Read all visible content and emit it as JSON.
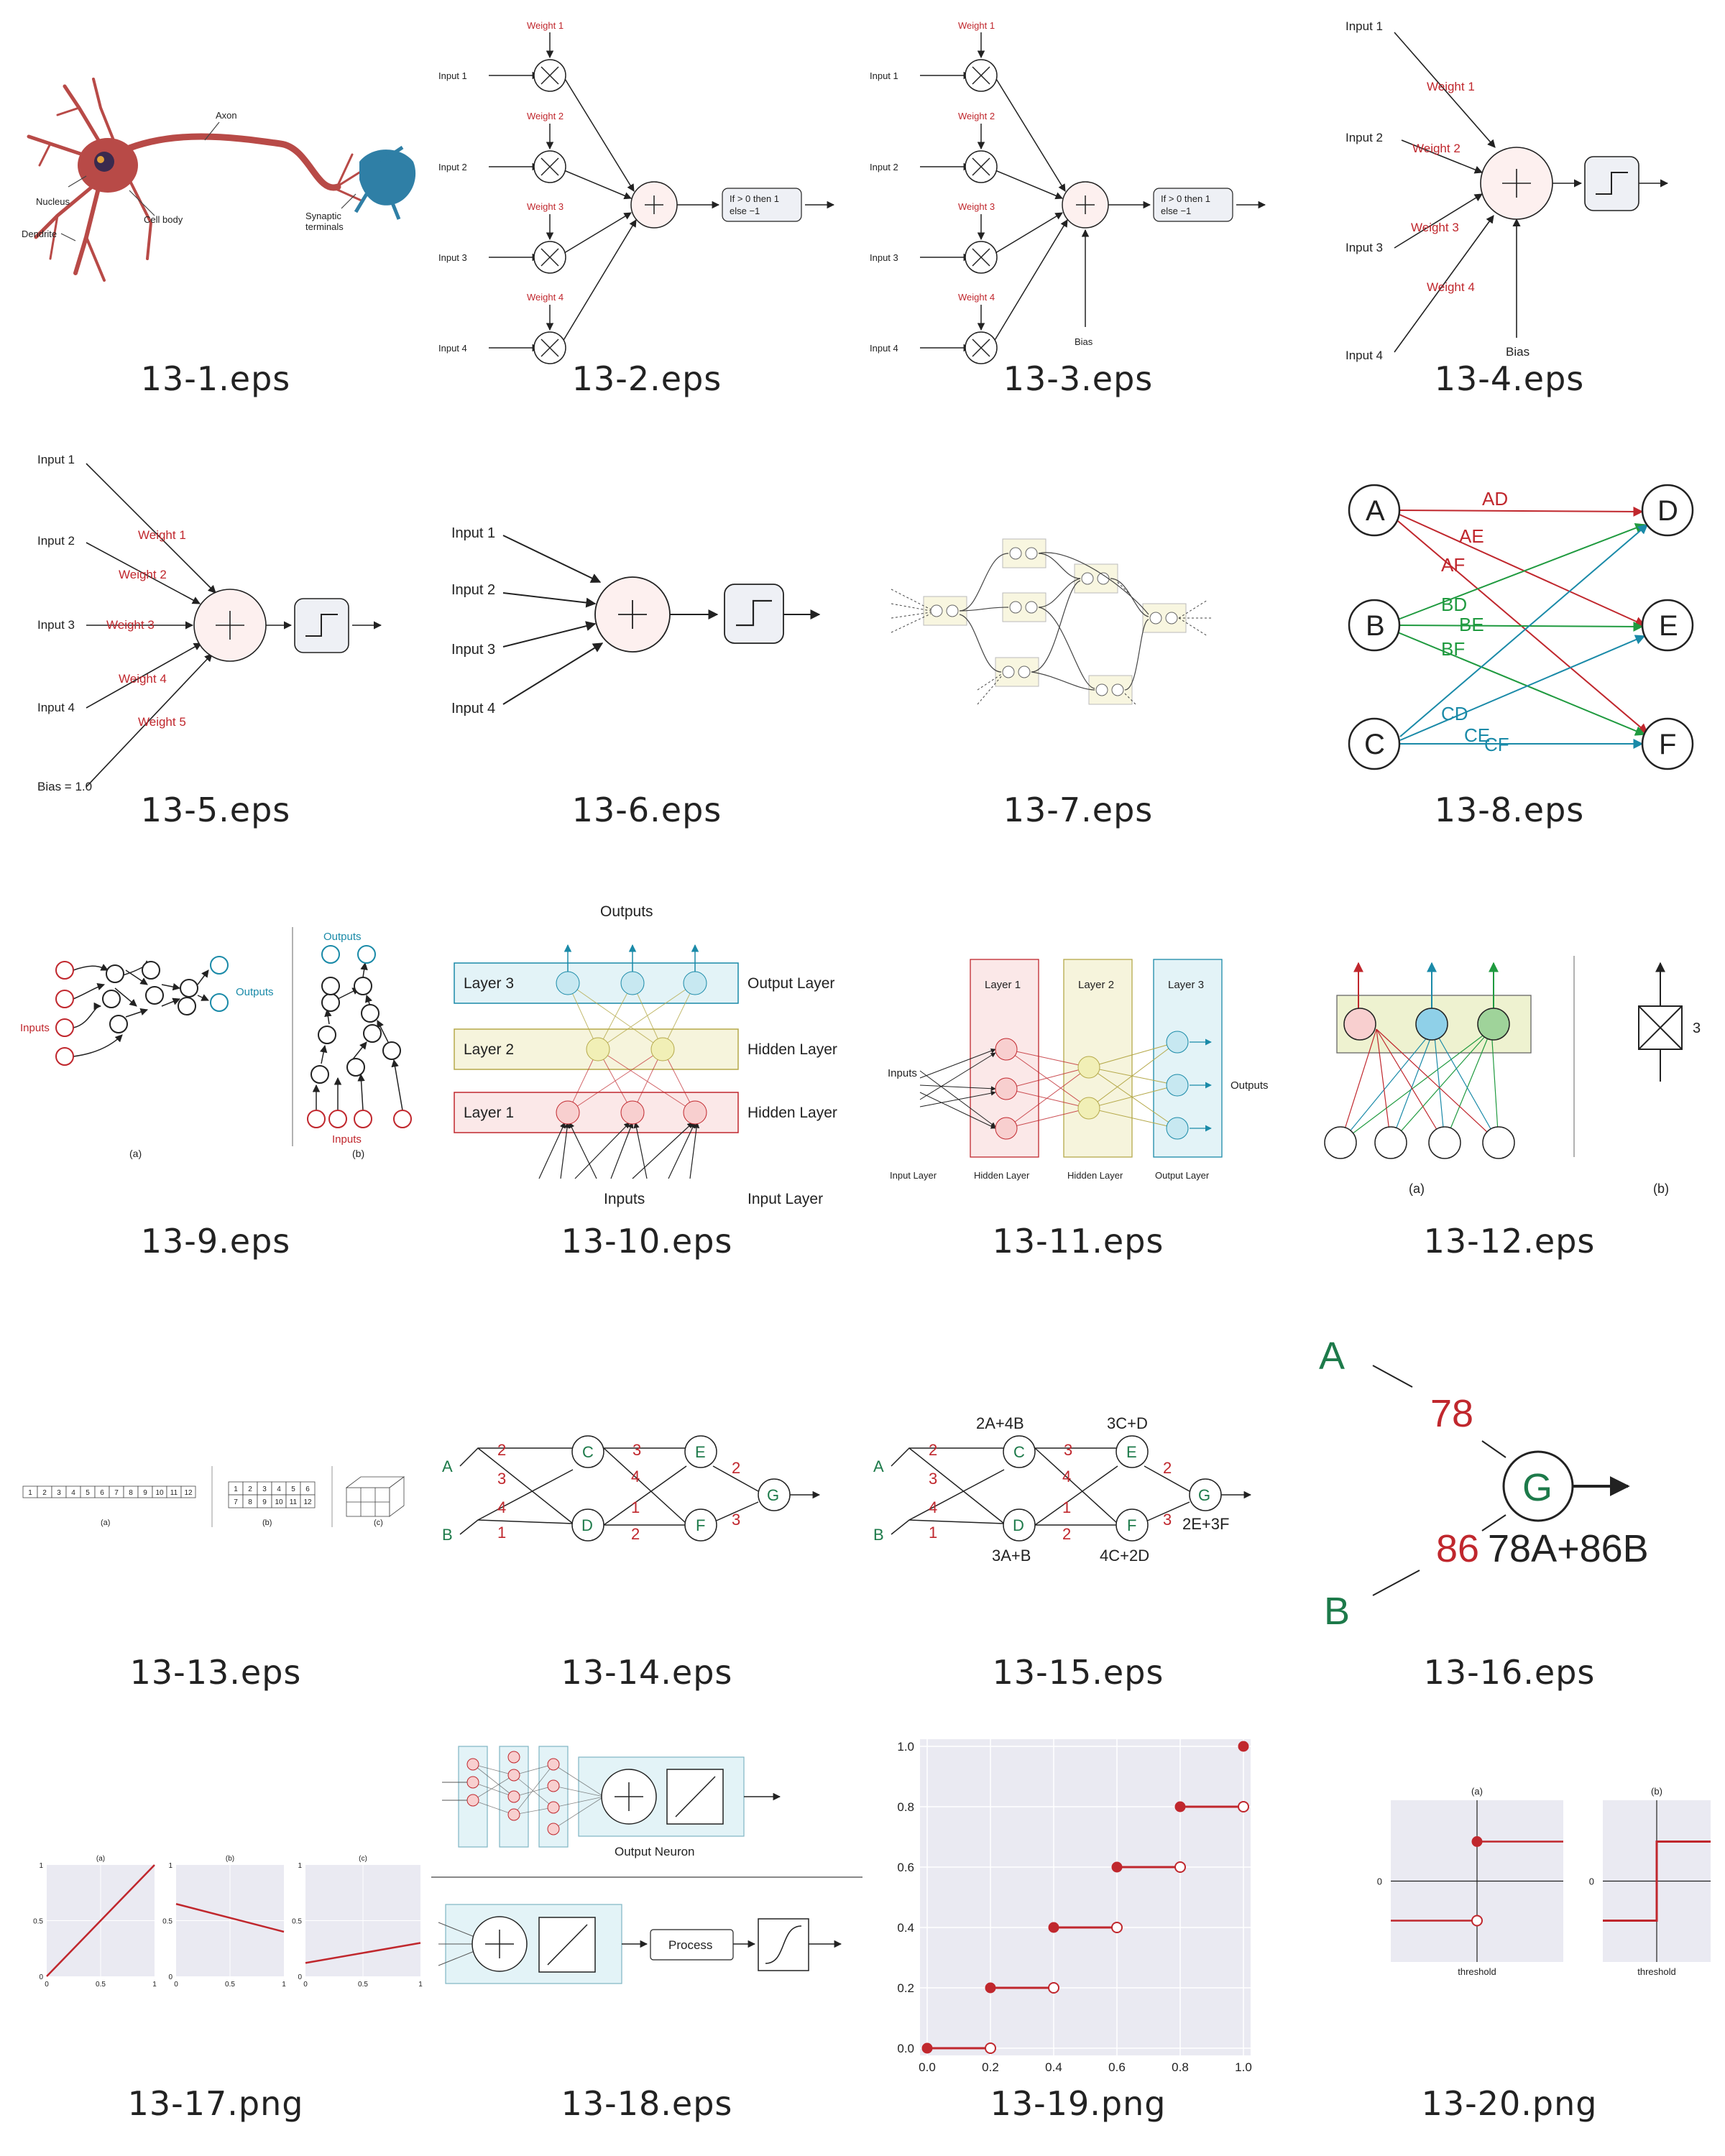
{
  "colors": {
    "red": "#c0272d",
    "green": "#1f9a3f",
    "teal": "#1a8aa8",
    "dkgreen": "#1d7a4a",
    "ink": "#222222"
  },
  "captions": [
    "13-1.eps",
    "13-2.eps",
    "13-3.eps",
    "13-4.eps",
    "13-5.eps",
    "13-6.eps",
    "13-7.eps",
    "13-8.eps",
    "13-9.eps",
    "13-10.eps",
    "13-11.eps",
    "13-12.eps",
    "13-13.eps",
    "13-14.eps",
    "13-15.eps",
    "13-16.eps",
    "13-17.png",
    "13-18.eps",
    "13-19.png",
    "13-20.png"
  ],
  "fig1": {
    "axon": "Axon",
    "nucleus": "Nucleus",
    "cell_body": "Cell body",
    "dendrite": "Dendrite",
    "synaptic": "Synaptic",
    "terminals": "terminals"
  },
  "perceptron": {
    "inputs": [
      "Input 1",
      "Input 2",
      "Input 3",
      "Input 4"
    ],
    "weights": [
      "Weight 1",
      "Weight 2",
      "Weight 3",
      "Weight 4"
    ],
    "rule_line1": "If > 0 then 1",
    "rule_line2": "else −1",
    "bias": "Bias"
  },
  "fig5": {
    "inputs": [
      "Input 1",
      "Input 2",
      "Input 3",
      "Input 4"
    ],
    "weights": [
      "Weight 1",
      "Weight 2",
      "Weight 3",
      "Weight 4",
      "Weight 5"
    ],
    "bias": "Bias = 1.0"
  },
  "fig8": {
    "left": [
      "A",
      "B",
      "C"
    ],
    "right": [
      "D",
      "E",
      "F"
    ],
    "edges": [
      "AD",
      "AE",
      "AF",
      "BD",
      "BE",
      "BF",
      "CD",
      "CE",
      "CF"
    ]
  },
  "fig9": {
    "inputs": "Inputs",
    "outputs": "Outputs",
    "a": "(a)",
    "b": "(b)"
  },
  "fig10": {
    "outputs": "Outputs",
    "inputs": "Inputs",
    "layers": [
      "Layer 3",
      "Layer 2",
      "Layer 1"
    ],
    "roles": [
      "Output Layer",
      "Hidden Layer",
      "Hidden Layer",
      "Input Layer"
    ]
  },
  "fig11": {
    "layers": [
      "Layer 1",
      "Layer 2",
      "Layer 3"
    ],
    "inputs": "Inputs",
    "outputs": "Outputs",
    "roles": [
      "Input Layer",
      "Hidden Layer",
      "Hidden Layer",
      "Output Layer"
    ]
  },
  "fig12": {
    "a": "(a)",
    "b": "(b)",
    "count": "3"
  },
  "fig13": {
    "row": [
      "1",
      "2",
      "3",
      "4",
      "5",
      "6",
      "7",
      "8",
      "9",
      "10",
      "11",
      "12"
    ],
    "a": "(a)",
    "b": "(b)",
    "c": "(c)"
  },
  "fig14": {
    "nodes": [
      "A",
      "B",
      "C",
      "D",
      "E",
      "F",
      "G"
    ],
    "weights": [
      "2",
      "3",
      "4",
      "1",
      "3",
      "4",
      "1",
      "2",
      "2",
      "3"
    ]
  },
  "fig15": {
    "exprs": [
      "2A+4B",
      "3C+D",
      "3A+B",
      "4C+2D",
      "2E+3F"
    ]
  },
  "fig16": {
    "a": "A",
    "b": "B",
    "g": "G",
    "wa": "78",
    "wb": "86",
    "expr": "78A+86B"
  },
  "fig17": {
    "titles": [
      "(a)",
      "(b)",
      "(c)"
    ],
    "yticks": [
      "1",
      "0.5",
      "0"
    ],
    "xticks": [
      "0",
      "0.5",
      "1"
    ]
  },
  "fig18": {
    "output_neuron": "Output Neuron",
    "process": "Process"
  },
  "chart_data": [
    {
      "type": "line",
      "panel": "13-17.png",
      "subplots": [
        {
          "title": "(a)",
          "x": [
            0,
            1
          ],
          "y": [
            0,
            1
          ]
        },
        {
          "title": "(b)",
          "x": [
            0,
            1
          ],
          "y": [
            0.65,
            0.4
          ]
        },
        {
          "title": "(c)",
          "x": [
            0,
            1
          ],
          "y": [
            0.12,
            0.3
          ]
        }
      ],
      "xlim": [
        0,
        1
      ],
      "ylim": [
        0,
        1
      ]
    },
    {
      "type": "scatter",
      "panel": "13-19.png",
      "steps": [
        {
          "x0": 0.0,
          "x1": 0.2,
          "y": 0.0
        },
        {
          "x0": 0.2,
          "x1": 0.4,
          "y": 0.2
        },
        {
          "x0": 0.4,
          "x1": 0.6,
          "y": 0.4
        },
        {
          "x0": 0.6,
          "x1": 0.8,
          "y": 0.6
        },
        {
          "x0": 0.8,
          "x1": 1.0,
          "y": 0.8
        }
      ],
      "final_point": {
        "x": 1.0,
        "y": 1.0
      },
      "xticks": [
        "0.0",
        "0.2",
        "0.4",
        "0.6",
        "0.8",
        "1.0"
      ],
      "yticks": [
        "0.0",
        "0.2",
        "0.4",
        "0.6",
        "0.8",
        "1.0"
      ],
      "xlim": [
        0,
        1
      ],
      "ylim": [
        0,
        1
      ]
    },
    {
      "type": "line",
      "panel": "13-20.png",
      "subplots": [
        {
          "title": "(a)",
          "xlabel": "threshold",
          "ytick": "0",
          "low": -0.5,
          "high": 0.5
        },
        {
          "title": "(b)",
          "xlabel": "threshold",
          "ytick": "0",
          "low": -0.5,
          "high": 0.5
        }
      ]
    }
  ]
}
